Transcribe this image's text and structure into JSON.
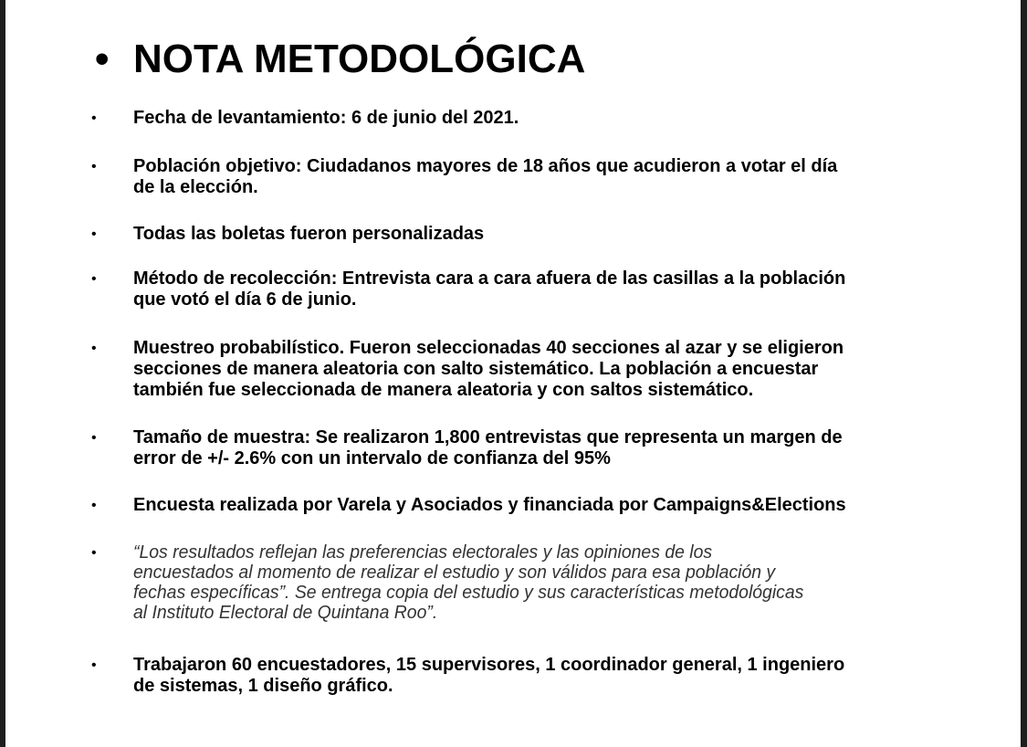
{
  "title": "NOTA METODOLÓGICA",
  "bullet": "•",
  "items": [
    {
      "lines": [
        "Fecha de levantamiento: 6 de junio del 2021."
      ]
    },
    {
      "lines": [
        "Población objetivo: Ciudadanos mayores de 18 años que acudieron a votar el día",
        "de la elección."
      ]
    },
    {
      "lines": [
        "Todas las boletas fueron personalizadas"
      ]
    },
    {
      "lines": [
        "Método de recolección: Entrevista cara a cara afuera de las casillas a la población",
        "que votó el día 6 de junio."
      ]
    },
    {
      "lines": [
        "Muestreo probabilístico. Fueron seleccionadas 40 secciones al azar y se eligieron",
        "secciones de manera aleatoria con salto sistemático. La población a encuestar",
        "también fue seleccionada de manera aleatoria y con saltos sistemático."
      ]
    },
    {
      "lines": [
        "Tamaño de muestra: Se realizaron 1,800 entrevistas que representa un margen de",
        "error de +/- 2.6% con un intervalo de confianza del 95%"
      ]
    },
    {
      "lines": [
        "Encuesta realizada por Varela y Asociados y financiada por Campaigns&Elections"
      ]
    },
    {
      "lines": [
        "“Los resultados reflejan las preferencias electorales y las opiniones de los",
        "encuestados al momento de realizar el estudio y son válidos para esa población y",
        "fechas específicas”. Se entrega copia del estudio y sus características metodológicas",
        "al Instituto Electoral de Quintana Roo”."
      ]
    },
    {
      "lines": [
        "Trabajaron 60 encuestadores, 15 supervisores, 1 coordinador general, 1 ingeniero",
        "de sistemas, 1 diseño gráfico."
      ]
    }
  ]
}
